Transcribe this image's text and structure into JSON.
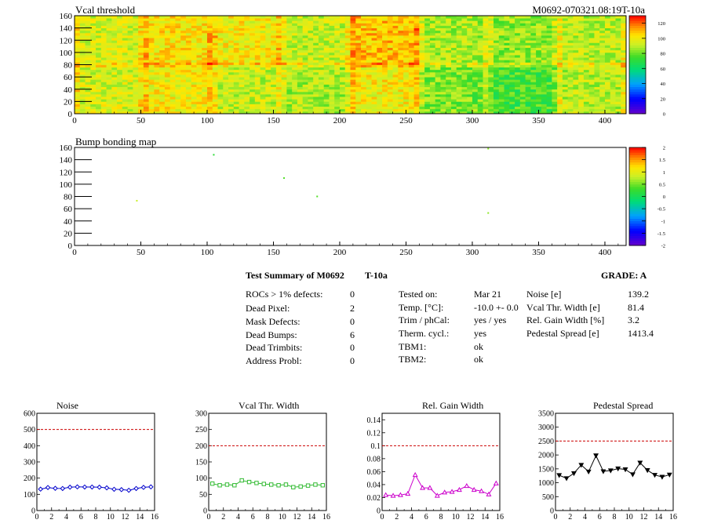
{
  "header": {
    "map1_title": "Vcal threshold",
    "module_id": "M0692-070321.08:19T-10a",
    "map2_title": "Bump bonding map"
  },
  "maps": {
    "x_ticks": [
      "0",
      "50",
      "100",
      "150",
      "200",
      "250",
      "300",
      "350",
      "400"
    ],
    "y_ticks": [
      "0",
      "20",
      "40",
      "60",
      "80",
      "100",
      "120",
      "140",
      "160"
    ],
    "cbar1_ticks": [
      "0",
      "20",
      "40",
      "60",
      "80",
      "100",
      "120"
    ],
    "cbar2_ticks": [
      "-2",
      "-1.5",
      "-1",
      "-0.5",
      "0",
      "0.5",
      "1",
      "1.5",
      "2"
    ]
  },
  "summary": {
    "title_left": "Test Summary of M0692",
    "title_mid": "T-10a",
    "grade": "GRADE:  A",
    "col1": [
      {
        "label": "ROCs > 1% defects:",
        "value": "0"
      },
      {
        "label": "Dead Pixel:",
        "value": "2"
      },
      {
        "label": "Mask Defects:",
        "value": "0"
      },
      {
        "label": "Dead Bumps:",
        "value": "6"
      },
      {
        "label": "Dead Trimbits:",
        "value": "0"
      },
      {
        "label": "Address Probl:",
        "value": "0"
      }
    ],
    "col2": [
      {
        "label": "Tested on:",
        "value": "Mar 21"
      },
      {
        "label": "Temp. [°C]:",
        "value": "-10.0 +- 0.0"
      },
      {
        "label": "Trim / phCal:",
        "value": "yes / yes"
      },
      {
        "label": "Therm. cycl.:",
        "value": "yes"
      },
      {
        "label": "TBM1:",
        "value": "ok"
      },
      {
        "label": "TBM2:",
        "value": "ok"
      }
    ],
    "col3": [
      {
        "label": "Noise [e]",
        "value": "139.2"
      },
      {
        "label": "Vcal Thr. Width [e]",
        "value": "81.4"
      },
      {
        "label": "Rel. Gain Width [%]",
        "value": "3.2"
      },
      {
        "label": "Pedestal Spread [e]",
        "value": "1413.4"
      }
    ]
  },
  "chart_data": [
    {
      "type": "heatmap",
      "title": "Vcal threshold",
      "xlim": [
        0,
        416
      ],
      "ylim": [
        0,
        160
      ],
      "zlim": [
        0,
        130
      ],
      "roc_means_top": [
        95,
        102,
        100,
        92,
        108,
        88,
        85,
        90
      ],
      "roc_means_bottom": [
        95,
        100,
        92,
        88,
        100,
        82,
        75,
        90
      ],
      "line_color": "#00aa00"
    },
    {
      "type": "heatmap",
      "title": "Bump bonding map",
      "xlim": [
        0,
        416
      ],
      "ylim": [
        0,
        160
      ],
      "zlim": [
        -2,
        2
      ],
      "points": [
        [
          105,
          148,
          0.2
        ],
        [
          158,
          110,
          0.4
        ],
        [
          183,
          80,
          0.4
        ],
        [
          312,
          53,
          0.6
        ],
        [
          312,
          158,
          0.6
        ],
        [
          47,
          73,
          0.8
        ]
      ]
    },
    {
      "type": "line",
      "title": "Noise",
      "x": [
        0,
        1,
        2,
        3,
        4,
        5,
        6,
        7,
        8,
        9,
        10,
        11,
        12,
        13,
        14,
        15
      ],
      "values": [
        132,
        142,
        137,
        136,
        144,
        146,
        145,
        145,
        144,
        140,
        131,
        129,
        125,
        136,
        143,
        146
      ],
      "xlim": [
        0,
        16
      ],
      "ylim": [
        0,
        600
      ],
      "yticks": [
        "0",
        "100",
        "200",
        "300",
        "400",
        "500",
        "600"
      ],
      "xticks": [
        "0",
        "2",
        "4",
        "6",
        "8",
        "10",
        "12",
        "14",
        "16"
      ],
      "threshold": 500,
      "color": "#0000cc",
      "marker": "diamond"
    },
    {
      "type": "line",
      "title": "Vcal Thr. Width",
      "x": [
        0,
        1,
        2,
        3,
        4,
        5,
        6,
        7,
        8,
        9,
        10,
        11,
        12,
        13,
        14,
        15
      ],
      "values": [
        83,
        78,
        80,
        78,
        93,
        88,
        85,
        82,
        80,
        78,
        80,
        72,
        74,
        77,
        80,
        78
      ],
      "xlim": [
        0,
        16
      ],
      "ylim": [
        0,
        300
      ],
      "yticks": [
        "0",
        "50",
        "100",
        "150",
        "200",
        "250",
        "300"
      ],
      "xticks": [
        "0",
        "2",
        "4",
        "6",
        "8",
        "10",
        "12",
        "14",
        "16"
      ],
      "threshold": 200,
      "color": "#33bb33",
      "marker": "square"
    },
    {
      "type": "line",
      "title": "Rel. Gain Width",
      "x": [
        0,
        1,
        2,
        3,
        4,
        5,
        6,
        7,
        8,
        9,
        10,
        11,
        12,
        13,
        14,
        15
      ],
      "values": [
        0.024,
        0.023,
        0.024,
        0.026,
        0.055,
        0.035,
        0.035,
        0.023,
        0.028,
        0.029,
        0.032,
        0.038,
        0.032,
        0.03,
        0.025,
        0.042
      ],
      "xlim": [
        0,
        16
      ],
      "ylim": [
        0,
        0.15
      ],
      "yticks": [
        "0",
        "0.02",
        "0.04",
        "0.06",
        "0.08",
        "0.1",
        "0.12",
        "0.14"
      ],
      "xticks": [
        "0",
        "2",
        "4",
        "6",
        "8",
        "10",
        "12",
        "14",
        "16"
      ],
      "threshold": 0.1,
      "color": "#cc00cc",
      "marker": "triangle"
    },
    {
      "type": "line",
      "title": "Pedestal Spread",
      "x": [
        0,
        1,
        2,
        3,
        4,
        5,
        6,
        7,
        8,
        9,
        10,
        11,
        12,
        13,
        14,
        15
      ],
      "values": [
        1270,
        1160,
        1340,
        1640,
        1400,
        1980,
        1410,
        1440,
        1510,
        1480,
        1300,
        1720,
        1450,
        1280,
        1210,
        1290
      ],
      "xlim": [
        0,
        16
      ],
      "ylim": [
        0,
        3500
      ],
      "yticks": [
        "0",
        "500",
        "1000",
        "1500",
        "2000",
        "2500",
        "3000",
        "3500"
      ],
      "xticks": [
        "0",
        "2",
        "4",
        "6",
        "8",
        "10",
        "12",
        "14",
        "16"
      ],
      "threshold": 2500,
      "color": "#000000",
      "marker": "triangle-down"
    }
  ]
}
